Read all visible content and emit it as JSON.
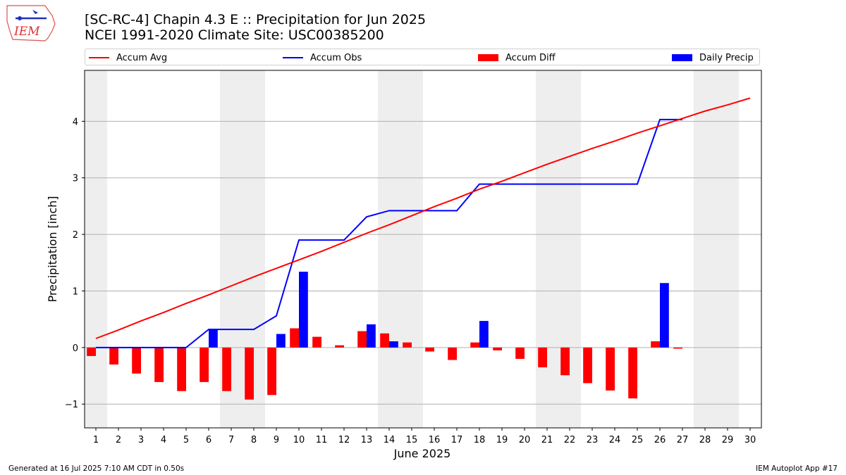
{
  "title_line1": "[SC-RC-4] Chapin 4.3 E :: Precipitation for Jun 2025",
  "title_line2": "NCEI 1991-2020 Climate Site: USC00385200",
  "logo_text": "IEM",
  "footer_left": "Generated at 16 Jul 2025 7:10 AM CDT in 0.50s",
  "footer_right": "IEM Autoplot App #17",
  "colors": {
    "avg": "#ff0000",
    "obs": "#0000ff",
    "diff": "#ff0000",
    "daily": "#0000ff",
    "weekend": "#eeeeee",
    "grid": "#b0b0b0"
  },
  "legend": [
    {
      "label": "Accum Avg",
      "kind": "line",
      "color": "#ff0000"
    },
    {
      "label": "Accum Obs",
      "kind": "line",
      "color": "#0000ff"
    },
    {
      "label": "Accum Diff",
      "kind": "box",
      "color": "#ff0000"
    },
    {
      "label": "Daily Precip",
      "kind": "box",
      "color": "#0000ff"
    }
  ],
  "chart_data": {
    "type": "bar",
    "xlabel": "June 2025",
    "ylabel": "Precipitation [inch]",
    "xlim": [
      0.5,
      30.5
    ],
    "ylim": [
      -1.42,
      4.9
    ],
    "yticks": [
      -1,
      0,
      1,
      2,
      3,
      4
    ],
    "grid": "horizontal",
    "legend_position": "top",
    "weekend_days": [
      1,
      7,
      8,
      14,
      15,
      21,
      22,
      28,
      29
    ],
    "days": [
      1,
      2,
      3,
      4,
      5,
      6,
      7,
      8,
      9,
      10,
      11,
      12,
      13,
      14,
      15,
      16,
      17,
      18,
      19,
      20,
      21,
      22,
      23,
      24,
      25,
      26,
      27,
      28,
      29,
      30
    ],
    "series": [
      {
        "name": "Accum Avg",
        "type": "line",
        "values": [
          0.16,
          0.31,
          0.47,
          0.62,
          0.78,
          0.93,
          1.09,
          1.25,
          1.4,
          1.55,
          1.7,
          1.86,
          2.02,
          2.17,
          2.33,
          2.49,
          2.64,
          2.8,
          2.94,
          3.09,
          3.24,
          3.38,
          3.52,
          3.65,
          3.79,
          3.92,
          4.05,
          4.18,
          4.29,
          4.41
        ]
      },
      {
        "name": "Accum Obs",
        "type": "line",
        "values": [
          0.0,
          0.0,
          0.0,
          0.0,
          0.0,
          0.32,
          0.32,
          0.32,
          0.56,
          1.9,
          1.9,
          1.9,
          2.31,
          2.42,
          2.42,
          2.42,
          2.42,
          2.89,
          2.89,
          2.89,
          2.89,
          2.89,
          2.89,
          2.89,
          2.89,
          4.03,
          4.03
        ]
      },
      {
        "name": "Accum Diff",
        "type": "bar",
        "values": [
          -0.15,
          -0.3,
          -0.46,
          -0.61,
          -0.77,
          -0.61,
          -0.77,
          -0.92,
          -0.84,
          0.34,
          0.19,
          0.04,
          0.29,
          0.25,
          0.09,
          -0.07,
          -0.22,
          0.09,
          -0.05,
          -0.2,
          -0.35,
          -0.49,
          -0.63,
          -0.76,
          -0.9,
          0.11,
          -0.02
        ]
      },
      {
        "name": "Daily Precip",
        "type": "bar",
        "values": [
          0,
          0,
          0,
          0,
          0,
          0.32,
          0,
          0,
          0.24,
          1.34,
          0,
          0,
          0.41,
          0.11,
          0,
          0,
          0,
          0.47,
          0,
          0,
          0,
          0,
          0,
          0,
          0,
          1.14,
          0
        ]
      }
    ]
  }
}
